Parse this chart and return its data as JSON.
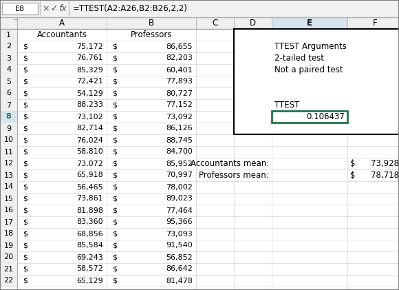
{
  "title_bar_cell": "E8",
  "formula_bar": "=TTEST(A2:A26,B2:B26,2,2)",
  "header_row": [
    "Accountants",
    "Professors"
  ],
  "accountants": [
    75172,
    76761,
    85329,
    72421,
    54129,
    88233,
    73102,
    82714,
    76024,
    58810,
    73072,
    65918,
    56465,
    73861,
    81898,
    83360,
    68856,
    85584,
    69243,
    58572,
    65129
  ],
  "professors": [
    86655,
    82203,
    60401,
    77893,
    80727,
    77152,
    73092,
    86126,
    88745,
    84700,
    85952,
    70997,
    78002,
    89023,
    77464,
    95366,
    73093,
    91540,
    56852,
    86642,
    81478
  ],
  "ttest_value": "0.106437",
  "acct_mean": "73,928",
  "prof_mean": "78,718",
  "bg_color": "#ffffff",
  "header_bg": "#efefef",
  "grid_color": "#d3d3d3",
  "selected_col_header_bg": "#d6e4f0",
  "selected_row_header_bg": "#d6e4f0",
  "selected_cell_border": "#217346",
  "num_rows_shown": 22,
  "formula_bar_bg": "#f2f2f2"
}
